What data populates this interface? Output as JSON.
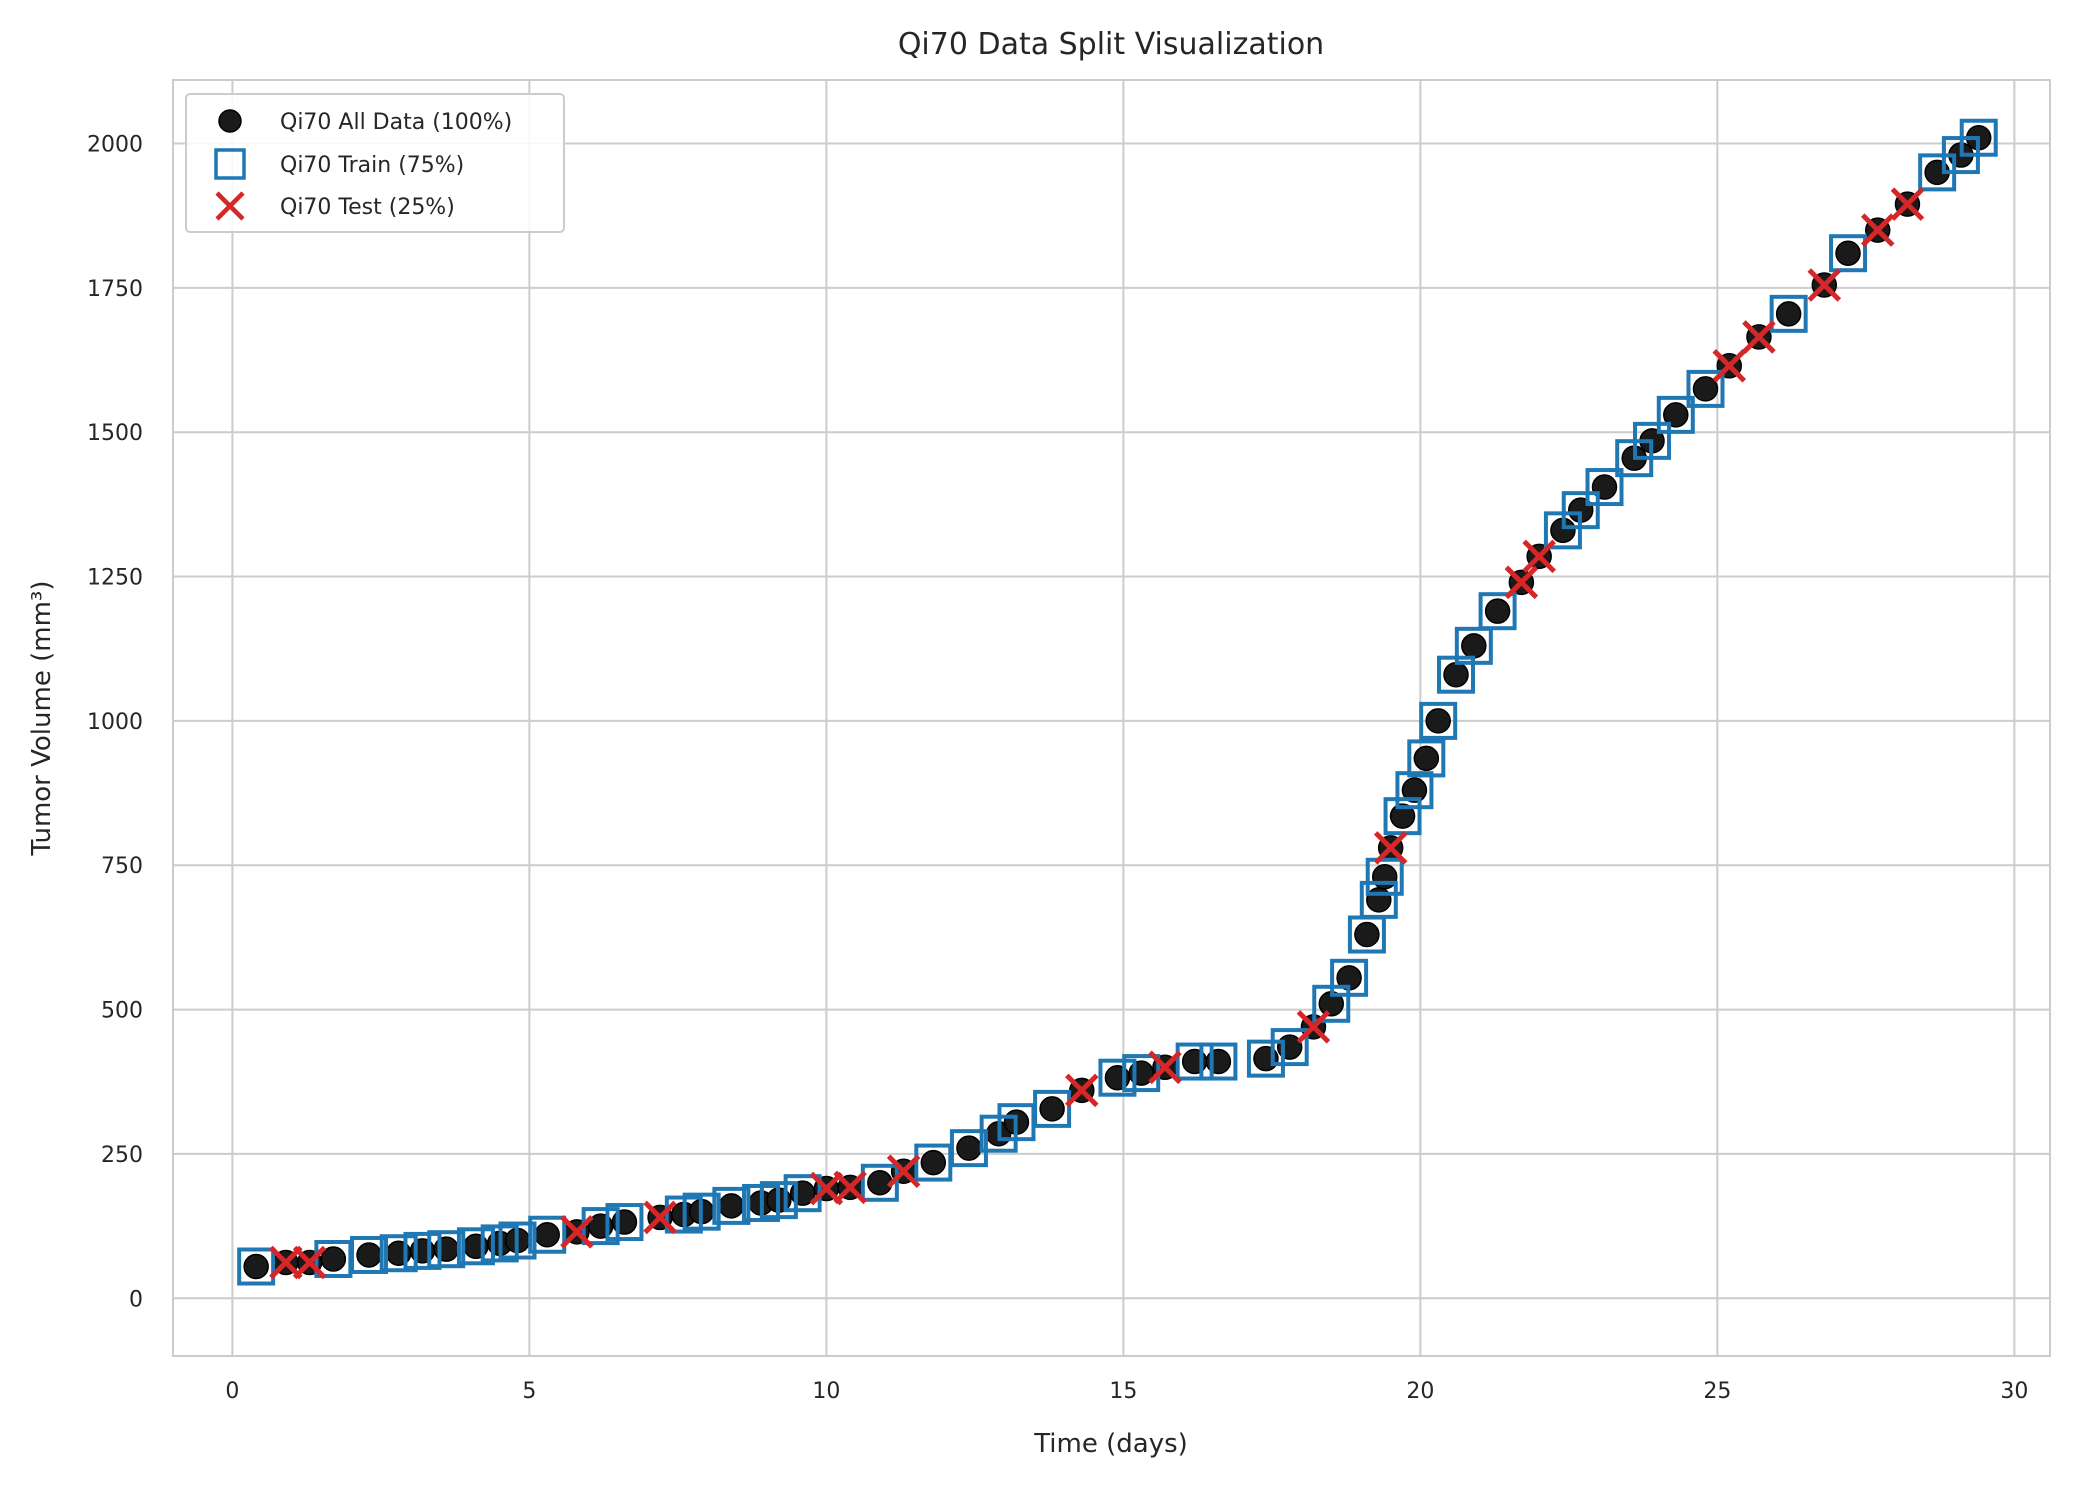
{
  "chart_data": {
    "type": "scatter",
    "title": "Qi70 Data Split Visualization",
    "xlabel": "Time (days)",
    "ylabel": "Tumor Volume (mm³)",
    "xlim": [
      -1.0,
      30.6
    ],
    "ylim": [
      -100,
      2110
    ],
    "xticks": [
      0,
      5,
      10,
      15,
      20,
      25,
      30
    ],
    "yticks": [
      0,
      250,
      500,
      750,
      1000,
      1250,
      1500,
      1750,
      2000
    ],
    "x_tick_labels": [
      "0",
      "5",
      "10",
      "15",
      "20",
      "25",
      "30"
    ],
    "y_tick_labels": [
      "0",
      "250",
      "500",
      "750",
      "1000",
      "1250",
      "1500",
      "1750",
      "2000"
    ],
    "grid": true,
    "legend_position": "top-left",
    "colors": {
      "all": "#1a1a1a",
      "train": "#1f77b4",
      "test": "#d62728",
      "grid": "#cccccc"
    },
    "series": [
      {
        "name": "Qi70 All Data (100%)",
        "marker": "circle",
        "points": [
          [
            0.4,
            55
          ],
          [
            0.9,
            62
          ],
          [
            1.3,
            62
          ],
          [
            1.7,
            68
          ],
          [
            2.3,
            75
          ],
          [
            2.8,
            78
          ],
          [
            3.2,
            82
          ],
          [
            3.6,
            85
          ],
          [
            4.1,
            90
          ],
          [
            4.5,
            95
          ],
          [
            4.8,
            100
          ],
          [
            5.3,
            110
          ],
          [
            5.8,
            115
          ],
          [
            6.2,
            125
          ],
          [
            6.6,
            132
          ],
          [
            7.2,
            140
          ],
          [
            7.6,
            145
          ],
          [
            7.9,
            150
          ],
          [
            8.4,
            160
          ],
          [
            8.9,
            165
          ],
          [
            9.2,
            170
          ],
          [
            9.6,
            182
          ],
          [
            10.0,
            190
          ],
          [
            10.4,
            192
          ],
          [
            10.9,
            200
          ],
          [
            11.3,
            220
          ],
          [
            11.8,
            235
          ],
          [
            12.4,
            260
          ],
          [
            12.9,
            285
          ],
          [
            13.2,
            305
          ],
          [
            13.8,
            328
          ],
          [
            14.3,
            360
          ],
          [
            14.9,
            382
          ],
          [
            15.3,
            390
          ],
          [
            15.7,
            400
          ],
          [
            16.2,
            410
          ],
          [
            16.6,
            410
          ],
          [
            17.4,
            415
          ],
          [
            17.8,
            435
          ],
          [
            18.2,
            470
          ],
          [
            18.5,
            510
          ],
          [
            18.8,
            555
          ],
          [
            19.1,
            630
          ],
          [
            19.3,
            690
          ],
          [
            19.4,
            730
          ],
          [
            19.5,
            780
          ],
          [
            19.7,
            835
          ],
          [
            19.9,
            880
          ],
          [
            20.1,
            935
          ],
          [
            20.3,
            1000
          ],
          [
            20.6,
            1080
          ],
          [
            20.9,
            1130
          ],
          [
            21.3,
            1190
          ],
          [
            21.7,
            1240
          ],
          [
            22.0,
            1285
          ],
          [
            22.4,
            1330
          ],
          [
            22.7,
            1365
          ],
          [
            23.1,
            1405
          ],
          [
            23.6,
            1455
          ],
          [
            23.9,
            1485
          ],
          [
            24.3,
            1530
          ],
          [
            24.8,
            1575
          ],
          [
            25.2,
            1615
          ],
          [
            25.7,
            1665
          ],
          [
            26.2,
            1705
          ],
          [
            26.8,
            1755
          ],
          [
            27.2,
            1810
          ],
          [
            27.7,
            1850
          ],
          [
            28.2,
            1895
          ],
          [
            28.7,
            1950
          ],
          [
            29.1,
            1980
          ],
          [
            29.4,
            2010
          ]
        ]
      },
      {
        "name": "Qi70 Train (75%)",
        "marker": "square",
        "points": [
          [
            0.4,
            55
          ],
          [
            1.7,
            68
          ],
          [
            2.3,
            75
          ],
          [
            2.8,
            78
          ],
          [
            3.2,
            82
          ],
          [
            3.6,
            85
          ],
          [
            4.1,
            90
          ],
          [
            4.5,
            95
          ],
          [
            4.8,
            100
          ],
          [
            5.3,
            110
          ],
          [
            6.2,
            125
          ],
          [
            6.6,
            132
          ],
          [
            7.6,
            145
          ],
          [
            7.9,
            150
          ],
          [
            8.4,
            160
          ],
          [
            8.9,
            165
          ],
          [
            9.2,
            170
          ],
          [
            9.6,
            182
          ],
          [
            10.9,
            200
          ],
          [
            11.8,
            235
          ],
          [
            12.4,
            260
          ],
          [
            12.9,
            285
          ],
          [
            13.2,
            305
          ],
          [
            13.8,
            328
          ],
          [
            14.9,
            382
          ],
          [
            15.3,
            390
          ],
          [
            16.2,
            410
          ],
          [
            16.6,
            410
          ],
          [
            17.4,
            415
          ],
          [
            17.8,
            435
          ],
          [
            18.5,
            510
          ],
          [
            18.8,
            555
          ],
          [
            19.1,
            630
          ],
          [
            19.3,
            690
          ],
          [
            19.4,
            730
          ],
          [
            19.7,
            835
          ],
          [
            19.9,
            880
          ],
          [
            20.1,
            935
          ],
          [
            20.3,
            1000
          ],
          [
            20.6,
            1080
          ],
          [
            20.9,
            1130
          ],
          [
            21.3,
            1190
          ],
          [
            22.4,
            1330
          ],
          [
            22.7,
            1365
          ],
          [
            23.1,
            1405
          ],
          [
            23.6,
            1455
          ],
          [
            23.9,
            1485
          ],
          [
            24.3,
            1530
          ],
          [
            24.8,
            1575
          ],
          [
            26.2,
            1705
          ],
          [
            27.2,
            1810
          ],
          [
            28.7,
            1950
          ],
          [
            29.1,
            1980
          ],
          [
            29.4,
            2010
          ]
        ]
      },
      {
        "name": "Qi70 Test (25%)",
        "marker": "x",
        "points": [
          [
            0.9,
            62
          ],
          [
            1.3,
            62
          ],
          [
            5.8,
            115
          ],
          [
            7.2,
            140
          ],
          [
            10.0,
            190
          ],
          [
            10.4,
            192
          ],
          [
            11.3,
            220
          ],
          [
            14.3,
            360
          ],
          [
            15.7,
            400
          ],
          [
            18.2,
            470
          ],
          [
            19.5,
            780
          ],
          [
            21.7,
            1240
          ],
          [
            22.0,
            1285
          ],
          [
            25.2,
            1615
          ],
          [
            25.7,
            1665
          ],
          [
            26.8,
            1755
          ],
          [
            27.7,
            1850
          ],
          [
            28.2,
            1895
          ]
        ]
      }
    ]
  }
}
